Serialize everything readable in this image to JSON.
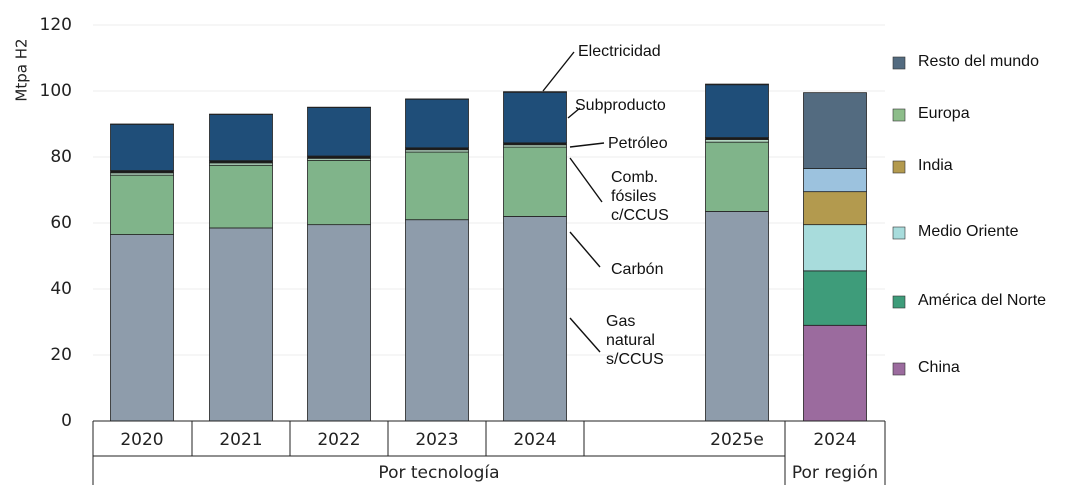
{
  "chart_data": [
    {
      "type": "bar",
      "stacked": true,
      "ylabel": "Mtpa H2",
      "xlabel": "Por tecnología",
      "categories": [
        "2020",
        "2021",
        "2022",
        "2023",
        "2024",
        "2025e"
      ],
      "ylim": [
        0,
        120
      ],
      "yticks": [
        0,
        20,
        40,
        60,
        80,
        100,
        120
      ],
      "grid": true,
      "series": [
        {
          "name": "Gas natural s/CCUS",
          "color": "#8e9cab",
          "values": [
            56.5,
            58.5,
            59.5,
            61,
            62,
            63.5
          ]
        },
        {
          "name": "Carbón",
          "color": "#80b48a",
          "values": [
            18,
            19,
            19.5,
            20.5,
            21,
            21
          ]
        },
        {
          "name": "Comb. fósiles c/CCUS",
          "color": "#b5d9c2",
          "values": [
            0.7,
            0.7,
            0.6,
            0.7,
            0.7,
            0.8
          ]
        },
        {
          "name": "Petróleo",
          "color": "#1a1a1a",
          "values": [
            0.7,
            0.7,
            0.7,
            0.6,
            0.6,
            0.6
          ]
        },
        {
          "name": "Subproducto",
          "color": "#1f4e79",
          "values": [
            14,
            14,
            14.7,
            14.7,
            15.3,
            16
          ]
        },
        {
          "name": "Electricidad",
          "color": "#2b5b8c",
          "values": [
            0.1,
            0.1,
            0.1,
            0.1,
            0.2,
            0.2
          ]
        }
      ]
    },
    {
      "type": "bar",
      "stacked": true,
      "xlabel": "Por región",
      "categories": [
        "2024"
      ],
      "legend": "right",
      "series": [
        {
          "name": "China",
          "color": "#9b6b9e",
          "values": [
            29
          ]
        },
        {
          "name": "América del Norte",
          "color": "#3e9c7a",
          "values": [
            16.5
          ]
        },
        {
          "name": "Medio Oriente",
          "color": "#a8dcdc",
          "values": [
            14
          ]
        },
        {
          "name": "India",
          "color": "#b39a4e",
          "values": [
            10
          ]
        },
        {
          "name": "Europa",
          "color": "#9cc2de",
          "legend_color": "#8dbd8a",
          "values": [
            7
          ]
        },
        {
          "name": "Resto del mundo",
          "color": "#536b80",
          "values": [
            23
          ]
        }
      ]
    }
  ]
}
